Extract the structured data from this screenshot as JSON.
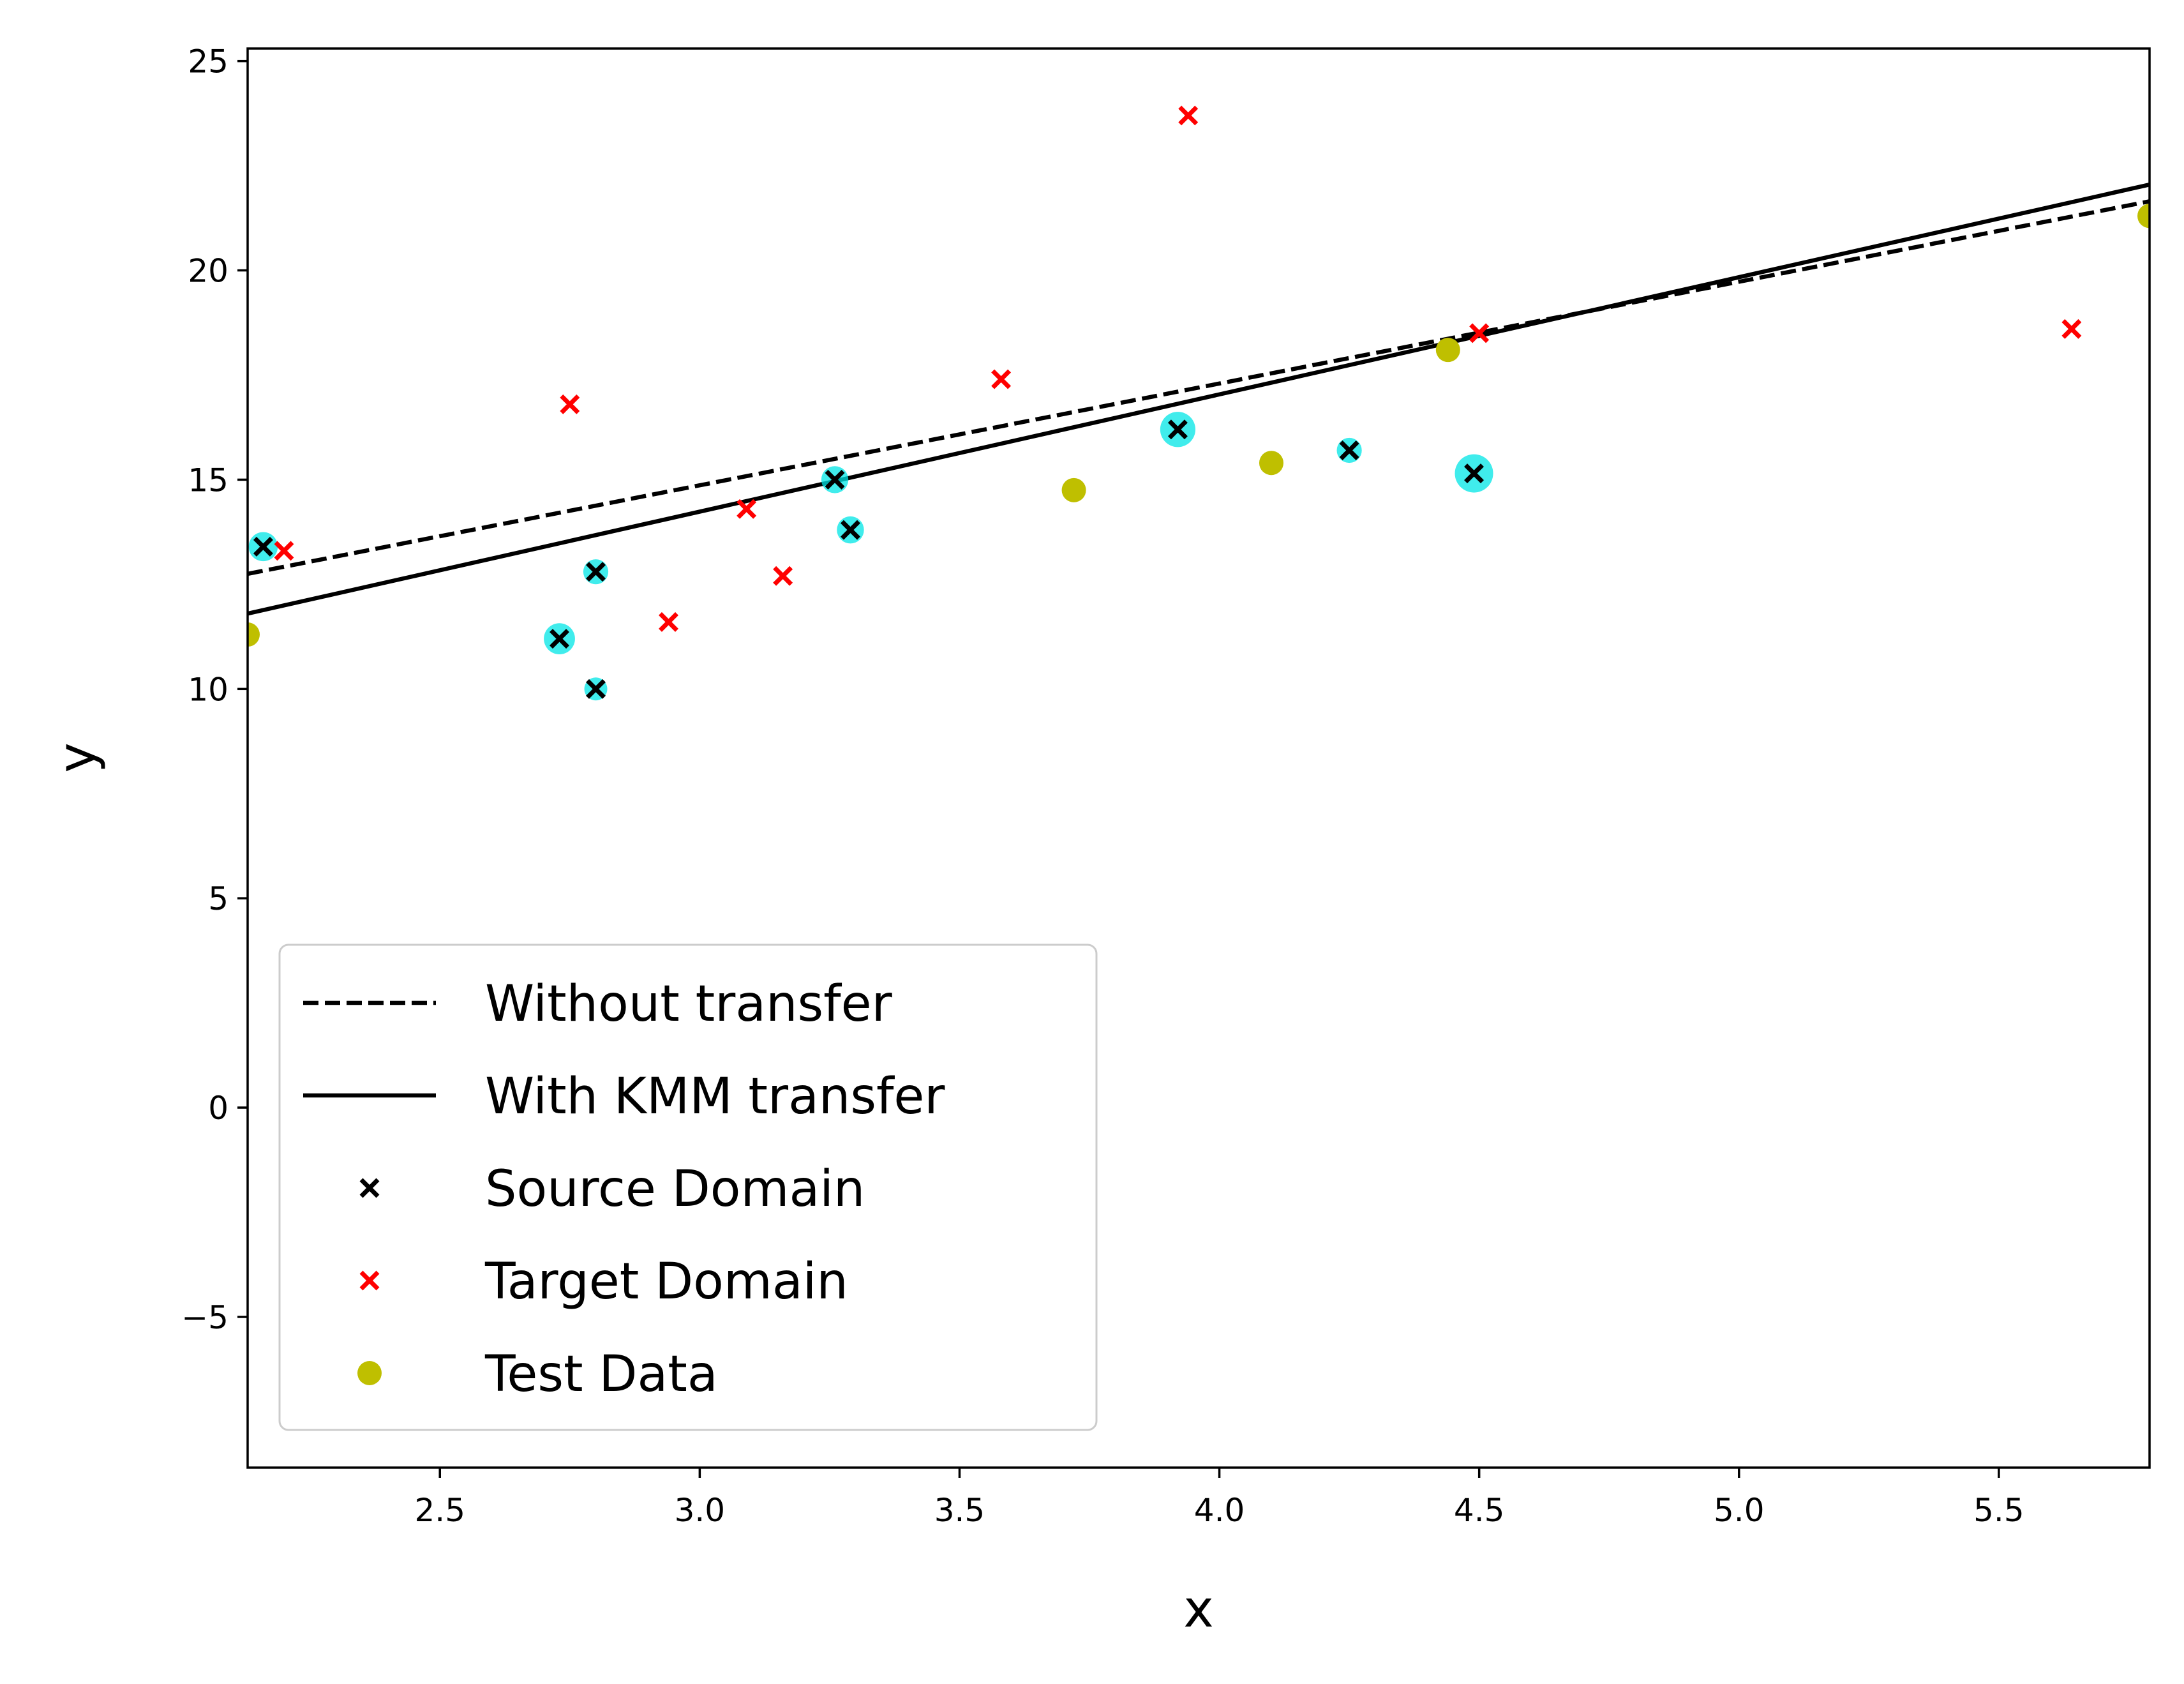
{
  "chart_data": {
    "type": "scatter",
    "title": "",
    "xlabel": "x",
    "ylabel": "y",
    "xlim": [
      2.13,
      5.79
    ],
    "ylim": [
      -8.6,
      25.3
    ],
    "xticks": [
      2.5,
      3.0,
      3.5,
      4.0,
      4.5,
      5.0,
      5.5
    ],
    "xtick_labels": [
      "2.5",
      "3.0",
      "3.5",
      "4.0",
      "4.5",
      "5.0",
      "5.5"
    ],
    "yticks": [
      -5,
      0,
      5,
      10,
      15,
      20,
      25
    ],
    "ytick_labels": [
      "−5",
      "0",
      "5",
      "10",
      "15",
      "20",
      "25"
    ],
    "grid": false,
    "legend_position": "lower-left",
    "lines": [
      {
        "name": "Without transfer",
        "style": "dashed",
        "color": "#000000",
        "x": [
          2.13,
          5.79
        ],
        "y": [
          12.75,
          21.65
        ]
      },
      {
        "name": "With KMM transfer",
        "style": "solid",
        "color": "#000000",
        "x": [
          2.13,
          5.79
        ],
        "y": [
          11.8,
          22.05
        ]
      }
    ],
    "series": [
      {
        "name": "Source Domain",
        "marker": "x",
        "color": "#000000",
        "highlight_color": "#00e5e5",
        "points": [
          {
            "x": 2.16,
            "y": 13.4,
            "w": 0.55
          },
          {
            "x": 2.73,
            "y": 11.2,
            "w": 0.65
          },
          {
            "x": 2.8,
            "y": 12.8,
            "w": 0.35
          },
          {
            "x": 2.8,
            "y": 10.0,
            "w": 0.25
          },
          {
            "x": 3.26,
            "y": 15.0,
            "w": 0.45
          },
          {
            "x": 3.29,
            "y": 13.8,
            "w": 0.45
          },
          {
            "x": 3.92,
            "y": 16.2,
            "w": 0.85
          },
          {
            "x": 4.25,
            "y": 15.7,
            "w": 0.35
          },
          {
            "x": 4.49,
            "y": 15.15,
            "w": 1.0
          }
        ]
      },
      {
        "name": "Target Domain",
        "marker": "x",
        "color": "#ff0000",
        "points": [
          {
            "x": 2.2,
            "y": 13.3
          },
          {
            "x": 2.75,
            "y": 16.8
          },
          {
            "x": 2.94,
            "y": 11.6
          },
          {
            "x": 3.09,
            "y": 14.3
          },
          {
            "x": 3.16,
            "y": 12.7
          },
          {
            "x": 3.58,
            "y": 17.4
          },
          {
            "x": 3.94,
            "y": 23.7
          },
          {
            "x": 4.5,
            "y": 18.5
          },
          {
            "x": 5.64,
            "y": 18.6
          }
        ]
      },
      {
        "name": "Test Data",
        "marker": "circle",
        "color": "#bfbf00",
        "points": [
          {
            "x": 2.13,
            "y": 11.3
          },
          {
            "x": 3.72,
            "y": 14.75
          },
          {
            "x": 4.1,
            "y": 15.4
          },
          {
            "x": 4.44,
            "y": 18.1
          },
          {
            "x": 5.79,
            "y": 21.3
          }
        ]
      }
    ]
  }
}
